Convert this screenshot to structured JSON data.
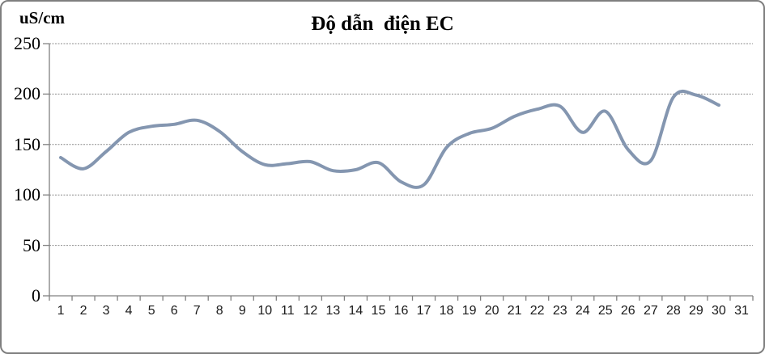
{
  "chart_data": {
    "type": "line",
    "title": "Độ dẫn  điện EC",
    "ylabel": "uS/cm",
    "xlabel": "",
    "categories": [
      1,
      2,
      3,
      4,
      5,
      6,
      7,
      8,
      9,
      10,
      11,
      12,
      13,
      14,
      15,
      16,
      17,
      18,
      19,
      20,
      21,
      22,
      23,
      24,
      25,
      26,
      27,
      28,
      29,
      30,
      31
    ],
    "values": [
      137,
      126,
      143,
      162,
      168,
      170,
      174,
      163,
      143,
      130,
      131,
      133,
      124,
      125,
      132,
      113,
      110,
      147,
      161,
      166,
      178,
      185,
      188,
      162,
      183,
      145,
      134,
      197,
      199,
      189,
      null
    ],
    "ylim": [
      0,
      250
    ],
    "yticks": [
      0,
      50,
      100,
      150,
      200,
      250
    ],
    "grid": "horizontal-dotted",
    "legend": "none",
    "smooth": true,
    "line_color": "#8496B0",
    "axis_color": "#808080",
    "gridline_color": "#8c8c8c"
  }
}
